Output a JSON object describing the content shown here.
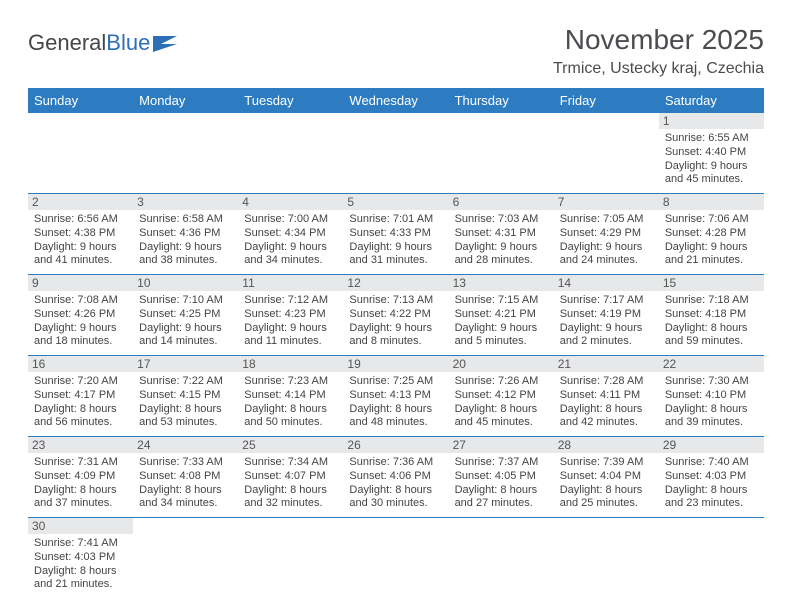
{
  "brand": {
    "name1": "General",
    "name2": "Blue"
  },
  "title": "November 2025",
  "subtitle": "Trmice, Ustecky kraj, Czechia",
  "colors": {
    "header_bg": "#2d7cc1",
    "header_text": "#ffffff",
    "daynum_bg": "#e7e8ea",
    "text": "#444444",
    "rule": "#2d7cc1",
    "page_bg": "#ffffff"
  },
  "typography": {
    "title_fontsize": 28,
    "subtitle_fontsize": 16,
    "dayhead_fontsize": 13,
    "body_fontsize": 11
  },
  "dayHeaders": [
    "Sunday",
    "Monday",
    "Tuesday",
    "Wednesday",
    "Thursday",
    "Friday",
    "Saturday"
  ],
  "weeks": [
    [
      null,
      null,
      null,
      null,
      null,
      null,
      {
        "n": "1",
        "sunrise": "Sunrise: 6:55 AM",
        "sunset": "Sunset: 4:40 PM",
        "day1": "Daylight: 9 hours",
        "day2": "and 45 minutes."
      }
    ],
    [
      {
        "n": "2",
        "sunrise": "Sunrise: 6:56 AM",
        "sunset": "Sunset: 4:38 PM",
        "day1": "Daylight: 9 hours",
        "day2": "and 41 minutes."
      },
      {
        "n": "3",
        "sunrise": "Sunrise: 6:58 AM",
        "sunset": "Sunset: 4:36 PM",
        "day1": "Daylight: 9 hours",
        "day2": "and 38 minutes."
      },
      {
        "n": "4",
        "sunrise": "Sunrise: 7:00 AM",
        "sunset": "Sunset: 4:34 PM",
        "day1": "Daylight: 9 hours",
        "day2": "and 34 minutes."
      },
      {
        "n": "5",
        "sunrise": "Sunrise: 7:01 AM",
        "sunset": "Sunset: 4:33 PM",
        "day1": "Daylight: 9 hours",
        "day2": "and 31 minutes."
      },
      {
        "n": "6",
        "sunrise": "Sunrise: 7:03 AM",
        "sunset": "Sunset: 4:31 PM",
        "day1": "Daylight: 9 hours",
        "day2": "and 28 minutes."
      },
      {
        "n": "7",
        "sunrise": "Sunrise: 7:05 AM",
        "sunset": "Sunset: 4:29 PM",
        "day1": "Daylight: 9 hours",
        "day2": "and 24 minutes."
      },
      {
        "n": "8",
        "sunrise": "Sunrise: 7:06 AM",
        "sunset": "Sunset: 4:28 PM",
        "day1": "Daylight: 9 hours",
        "day2": "and 21 minutes."
      }
    ],
    [
      {
        "n": "9",
        "sunrise": "Sunrise: 7:08 AM",
        "sunset": "Sunset: 4:26 PM",
        "day1": "Daylight: 9 hours",
        "day2": "and 18 minutes."
      },
      {
        "n": "10",
        "sunrise": "Sunrise: 7:10 AM",
        "sunset": "Sunset: 4:25 PM",
        "day1": "Daylight: 9 hours",
        "day2": "and 14 minutes."
      },
      {
        "n": "11",
        "sunrise": "Sunrise: 7:12 AM",
        "sunset": "Sunset: 4:23 PM",
        "day1": "Daylight: 9 hours",
        "day2": "and 11 minutes."
      },
      {
        "n": "12",
        "sunrise": "Sunrise: 7:13 AM",
        "sunset": "Sunset: 4:22 PM",
        "day1": "Daylight: 9 hours",
        "day2": "and 8 minutes."
      },
      {
        "n": "13",
        "sunrise": "Sunrise: 7:15 AM",
        "sunset": "Sunset: 4:21 PM",
        "day1": "Daylight: 9 hours",
        "day2": "and 5 minutes."
      },
      {
        "n": "14",
        "sunrise": "Sunrise: 7:17 AM",
        "sunset": "Sunset: 4:19 PM",
        "day1": "Daylight: 9 hours",
        "day2": "and 2 minutes."
      },
      {
        "n": "15",
        "sunrise": "Sunrise: 7:18 AM",
        "sunset": "Sunset: 4:18 PM",
        "day1": "Daylight: 8 hours",
        "day2": "and 59 minutes."
      }
    ],
    [
      {
        "n": "16",
        "sunrise": "Sunrise: 7:20 AM",
        "sunset": "Sunset: 4:17 PM",
        "day1": "Daylight: 8 hours",
        "day2": "and 56 minutes."
      },
      {
        "n": "17",
        "sunrise": "Sunrise: 7:22 AM",
        "sunset": "Sunset: 4:15 PM",
        "day1": "Daylight: 8 hours",
        "day2": "and 53 minutes."
      },
      {
        "n": "18",
        "sunrise": "Sunrise: 7:23 AM",
        "sunset": "Sunset: 4:14 PM",
        "day1": "Daylight: 8 hours",
        "day2": "and 50 minutes."
      },
      {
        "n": "19",
        "sunrise": "Sunrise: 7:25 AM",
        "sunset": "Sunset: 4:13 PM",
        "day1": "Daylight: 8 hours",
        "day2": "and 48 minutes."
      },
      {
        "n": "20",
        "sunrise": "Sunrise: 7:26 AM",
        "sunset": "Sunset: 4:12 PM",
        "day1": "Daylight: 8 hours",
        "day2": "and 45 minutes."
      },
      {
        "n": "21",
        "sunrise": "Sunrise: 7:28 AM",
        "sunset": "Sunset: 4:11 PM",
        "day1": "Daylight: 8 hours",
        "day2": "and 42 minutes."
      },
      {
        "n": "22",
        "sunrise": "Sunrise: 7:30 AM",
        "sunset": "Sunset: 4:10 PM",
        "day1": "Daylight: 8 hours",
        "day2": "and 39 minutes."
      }
    ],
    [
      {
        "n": "23",
        "sunrise": "Sunrise: 7:31 AM",
        "sunset": "Sunset: 4:09 PM",
        "day1": "Daylight: 8 hours",
        "day2": "and 37 minutes."
      },
      {
        "n": "24",
        "sunrise": "Sunrise: 7:33 AM",
        "sunset": "Sunset: 4:08 PM",
        "day1": "Daylight: 8 hours",
        "day2": "and 34 minutes."
      },
      {
        "n": "25",
        "sunrise": "Sunrise: 7:34 AM",
        "sunset": "Sunset: 4:07 PM",
        "day1": "Daylight: 8 hours",
        "day2": "and 32 minutes."
      },
      {
        "n": "26",
        "sunrise": "Sunrise: 7:36 AM",
        "sunset": "Sunset: 4:06 PM",
        "day1": "Daylight: 8 hours",
        "day2": "and 30 minutes."
      },
      {
        "n": "27",
        "sunrise": "Sunrise: 7:37 AM",
        "sunset": "Sunset: 4:05 PM",
        "day1": "Daylight: 8 hours",
        "day2": "and 27 minutes."
      },
      {
        "n": "28",
        "sunrise": "Sunrise: 7:39 AM",
        "sunset": "Sunset: 4:04 PM",
        "day1": "Daylight: 8 hours",
        "day2": "and 25 minutes."
      },
      {
        "n": "29",
        "sunrise": "Sunrise: 7:40 AM",
        "sunset": "Sunset: 4:03 PM",
        "day1": "Daylight: 8 hours",
        "day2": "and 23 minutes."
      }
    ],
    [
      {
        "n": "30",
        "sunrise": "Sunrise: 7:41 AM",
        "sunset": "Sunset: 4:03 PM",
        "day1": "Daylight: 8 hours",
        "day2": "and 21 minutes."
      },
      null,
      null,
      null,
      null,
      null,
      null
    ]
  ]
}
